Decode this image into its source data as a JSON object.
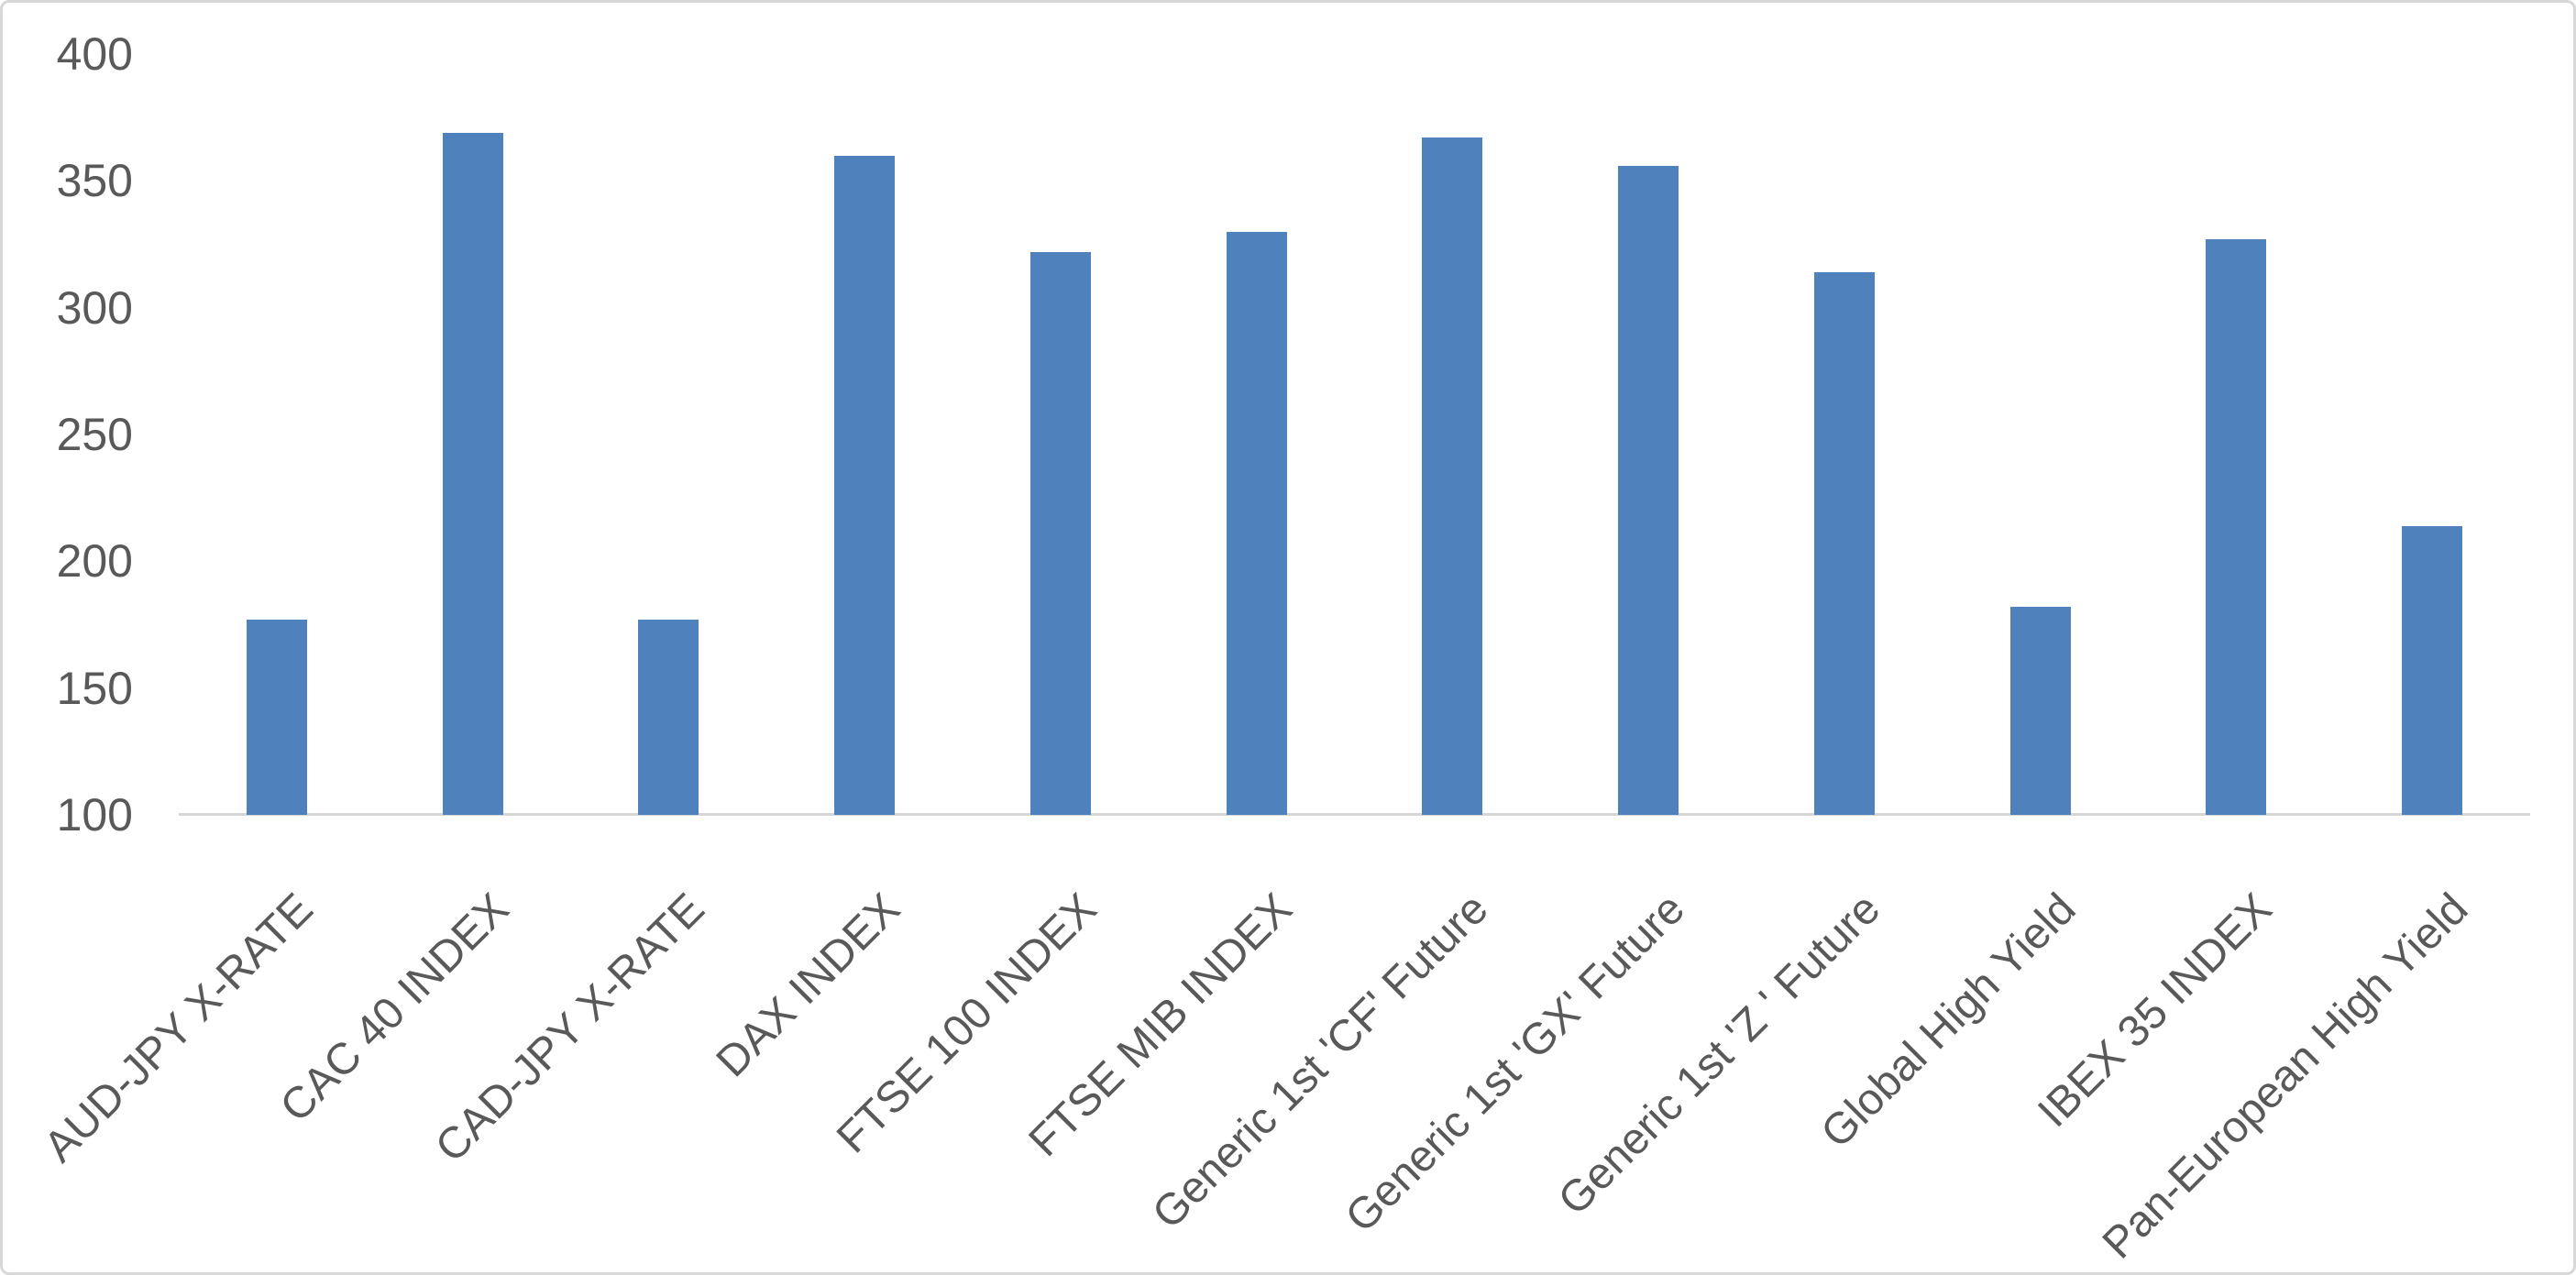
{
  "chart_data": {
    "type": "bar",
    "title": "",
    "categories": [
      "AUD-JPY X-RATE",
      "CAC 40 INDEX",
      "CAD-JPY X-RATE",
      "DAX INDEX",
      "FTSE 100 INDEX",
      "FTSE MIB INDEX",
      "Generic 1st 'CF' Future",
      "Generic 1st 'GX' Future",
      "Generic 1st 'Z ' Future",
      "Global High Yield",
      "IBEX 35 INDEX",
      "Pan-European High Yield"
    ],
    "values": [
      177,
      369,
      177,
      360,
      322,
      330,
      367,
      356,
      314,
      182,
      327,
      214
    ],
    "ylim": [
      100,
      400
    ],
    "yticks": [
      400,
      350,
      300,
      250,
      200,
      150,
      100
    ],
    "xlabel": "",
    "ylabel": "",
    "grid": false,
    "legend": "none",
    "category_label_rotation_deg": -45,
    "colors": {
      "bar": "#4f81bd",
      "axis_line": "#d6d6d6",
      "tick_text": "#595959",
      "canvas_border": "#d8d8d8",
      "background": "#ffffff"
    }
  }
}
